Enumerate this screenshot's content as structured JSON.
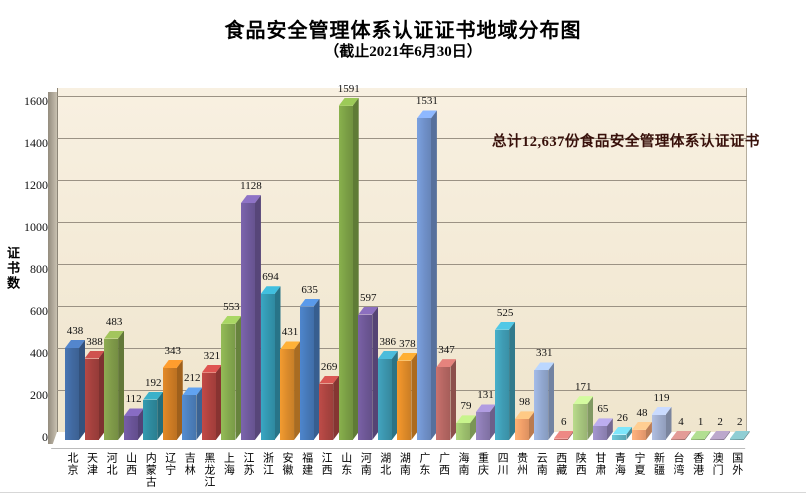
{
  "title": "食品安全管理体系认证证书地域分布图",
  "subtitle": "（截止2021年6月30日）",
  "annotation": "总计12,637份食品安全管理体系认证证书",
  "chart_data": {
    "type": "bar",
    "style": "3d-column",
    "title": "食品安全管理体系认证证书地域分布图",
    "subtitle": "（截止2021年6月30日）",
    "annotation": "总计12,637份食品安全管理体系认证证书",
    "total": 12637,
    "xlabel": "",
    "ylabel": "证书数",
    "ylim": [
      0,
      1600
    ],
    "ytick_step": 200,
    "grid": true,
    "legend": false,
    "wall_color": "#f4ecd8",
    "categories": [
      "北京",
      "天津",
      "河北",
      "山西",
      "内蒙古",
      "辽宁",
      "吉林",
      "黑龙江",
      "上海",
      "江苏",
      "浙江",
      "安徽",
      "福建",
      "江西",
      "山东",
      "河南",
      "湖北",
      "湖南",
      "广东",
      "广西",
      "海南",
      "重庆",
      "四川",
      "贵州",
      "云南",
      "西藏",
      "陕西",
      "甘肃",
      "青海",
      "宁夏",
      "新疆",
      "台湾",
      "香港",
      "澳门",
      "国外"
    ],
    "values": [
      438,
      388,
      483,
      112,
      192,
      343,
      212,
      321,
      553,
      1128,
      694,
      431,
      635,
      269,
      1591,
      597,
      386,
      378,
      1531,
      347,
      79,
      131,
      525,
      98,
      331,
      6,
      171,
      65,
      26,
      48,
      119,
      4,
      1,
      2,
      2
    ],
    "bar_colors": [
      "#4169a0",
      "#a2403d",
      "#7f9a49",
      "#6a5498",
      "#2e8a9e",
      "#cc7b24",
      "#4c7fbc",
      "#ae423f",
      "#84a84e",
      "#6f5a9b",
      "#3395ae",
      "#d98a2b",
      "#4678b7",
      "#aa4440",
      "#7a9e45",
      "#6d5795",
      "#3b93ab",
      "#dd8928",
      "#6f90c8",
      "#b46662",
      "#9cbf6d",
      "#8a7ab0",
      "#3f9cb4",
      "#ef9e68",
      "#92a8d0",
      "#ba6a67",
      "#a6c47d",
      "#9387bb",
      "#62b4c4",
      "#f0a172",
      "#9eabcb",
      "#b17976",
      "#8bae72",
      "#93839f",
      "#70a1a6"
    ]
  }
}
